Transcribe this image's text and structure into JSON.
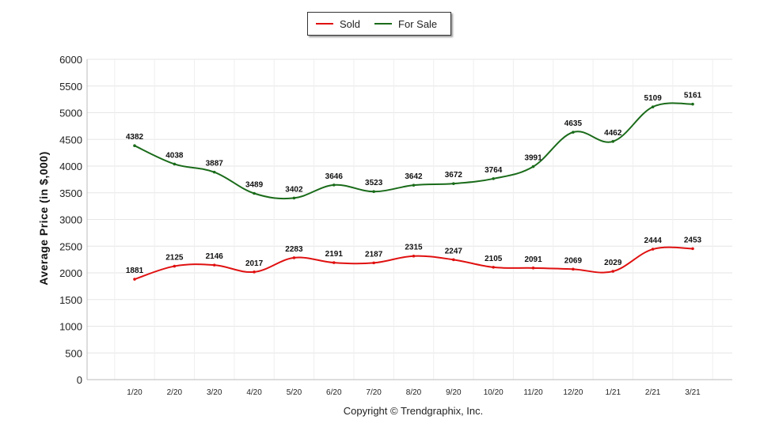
{
  "legend": {
    "sold_label": "Sold",
    "forsale_label": "For Sale"
  },
  "copyright": "Copyright © Trendgraphix, Inc.",
  "chart_data": {
    "type": "line",
    "title": "",
    "xlabel": "",
    "ylabel": "Average Price (in $,000)",
    "ylim": [
      0,
      6000
    ],
    "yticks": [
      0,
      500,
      1000,
      1500,
      2000,
      2500,
      3000,
      3500,
      4000,
      4500,
      5000,
      5500,
      6000
    ],
    "grid": true,
    "legend_position": "top-center",
    "categories": [
      "1/20",
      "2/20",
      "3/20",
      "4/20",
      "5/20",
      "6/20",
      "7/20",
      "8/20",
      "9/20",
      "10/20",
      "11/20",
      "12/20",
      "1/21",
      "2/21",
      "3/21"
    ],
    "series": [
      {
        "name": "Sold",
        "color": "#e01010",
        "values": [
          1881,
          2125,
          2146,
          2017,
          2283,
          2191,
          2187,
          2315,
          2247,
          2105,
          2091,
          2069,
          2029,
          2444,
          2453
        ]
      },
      {
        "name": "For Sale",
        "color": "#1a6b1a",
        "values": [
          4382,
          4038,
          3887,
          3489,
          3402,
          3646,
          3523,
          3642,
          3672,
          3764,
          3991,
          4635,
          4462,
          5109,
          5161
        ]
      }
    ]
  }
}
